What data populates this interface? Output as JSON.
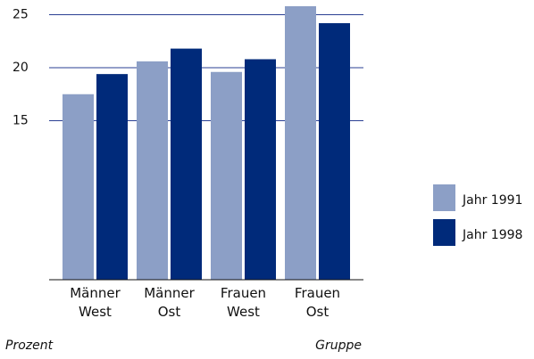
{
  "chart_data": {
    "type": "bar",
    "categories": [
      "Männer West",
      "Männer Ost",
      "Frauen West",
      "Frauen Ost"
    ],
    "series": [
      {
        "name": "Jahr 1991",
        "color": "#8c9fc6",
        "values": [
          17.5,
          20.6,
          19.6,
          25.8
        ]
      },
      {
        "name": "Jahr 1998",
        "color": "#002a7a",
        "values": [
          19.4,
          21.8,
          20.8,
          24.2
        ]
      }
    ],
    "ylim": [
      0,
      26
    ],
    "yticks": [
      15,
      20,
      25
    ],
    "grid": true,
    "y_label": "Prozent",
    "x_label": "Gruppe",
    "legend": "right"
  }
}
